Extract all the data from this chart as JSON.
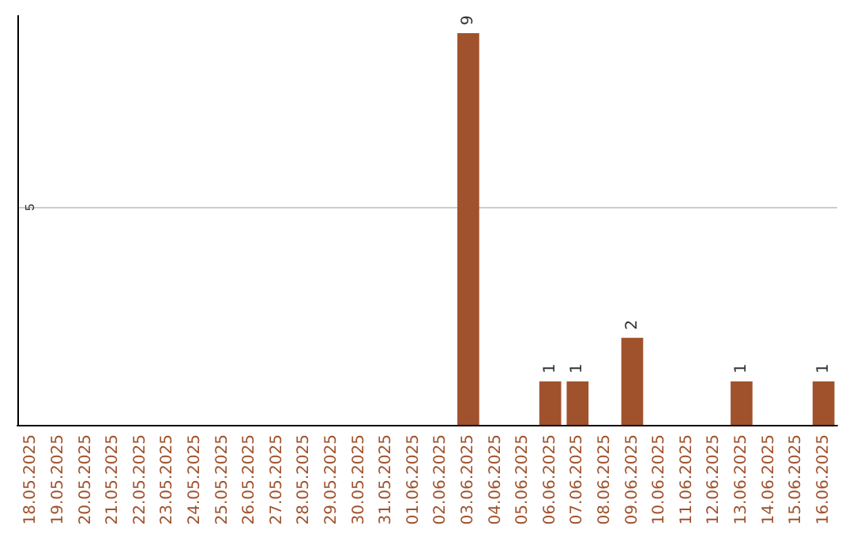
{
  "chart_data": {
    "type": "bar",
    "categories": [
      "18.05.2025",
      "19.05.2025",
      "20.05.2025",
      "21.05.2025",
      "22.05.2025",
      "23.05.2025",
      "24.05.2025",
      "25.05.2025",
      "26.05.2025",
      "27.05.2025",
      "28.05.2025",
      "29.05.2025",
      "30.05.2025",
      "31.05.2025",
      "01.06.2025",
      "02.06.2025",
      "03.06.2025",
      "04.06.2025",
      "05.06.2025",
      "06.06.2025",
      "07.06.2025",
      "08.06.2025",
      "09.06.2025",
      "10.06.2025",
      "11.06.2025",
      "12.06.2025",
      "13.06.2025",
      "14.06.2025",
      "15.06.2025",
      "16.06.2025"
    ],
    "values": [
      null,
      null,
      null,
      null,
      null,
      null,
      null,
      null,
      null,
      null,
      null,
      null,
      null,
      null,
      null,
      null,
      9,
      null,
      null,
      1,
      1,
      null,
      2,
      null,
      null,
      null,
      1,
      null,
      null,
      1
    ],
    "data_labels": true,
    "color": "#a0522d",
    "ylim": [
      0,
      9.4
    ],
    "yticks": [
      5
    ],
    "grid": "y"
  }
}
